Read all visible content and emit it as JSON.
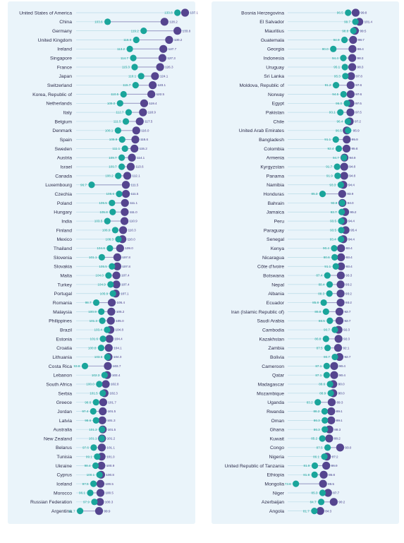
{
  "colors": {
    "teal": "#1aa59b",
    "purple": "#55458f",
    "track": "#b9dbe8",
    "panel": "#eaf4fa"
  },
  "chart_data": [
    {
      "type": "scatter",
      "x_domain": [
        90,
        140
      ],
      "series": [],
      "rows": [
        {
          "country": "United States of America",
          "teal": 133.8,
          "purple": 137.1
        },
        {
          "country": "China",
          "teal": 103.6,
          "purple": 128.2
        },
        {
          "country": "Germany",
          "teal": 119.2,
          "purple": 133.8
        },
        {
          "country": "United Kingdom",
          "teal": 116.0,
          "purple": 130.2
        },
        {
          "country": "Ireland",
          "teal": 113.2,
          "purple": 127.7
        },
        {
          "country": "Singapore",
          "teal": 114.7,
          "purple": 127.3
        },
        {
          "country": "France",
          "teal": 115.3,
          "purple": 126.3
        },
        {
          "country": "Japan",
          "teal": 118.1,
          "purple": 124.1
        },
        {
          "country": "Switzerland",
          "teal": 115.7,
          "purple": 123.1
        },
        {
          "country": "Korea, Republic of",
          "teal": 110.5,
          "purple": 122.5
        },
        {
          "country": "Netherlands",
          "teal": 109.0,
          "purple": 119.4
        },
        {
          "country": "Italy",
          "teal": 112.7,
          "purple": 118.9
        },
        {
          "country": "Belgium",
          "teal": 111.5,
          "purple": 117.5
        },
        {
          "country": "Denmark",
          "teal": 108.1,
          "purple": 116.0
        },
        {
          "country": "Spain",
          "teal": 109.9,
          "purple": 115.6
        },
        {
          "country": "Sweden",
          "teal": 111.1,
          "purple": 115.2
        },
        {
          "country": "Austria",
          "teal": 109.7,
          "purple": 114.1
        },
        {
          "country": "Israel",
          "teal": 109.7,
          "purple": 113.6
        },
        {
          "country": "Canada",
          "teal": 108.2,
          "purple": 112.1
        },
        {
          "country": "Luxembourg",
          "teal": 96.7,
          "purple": 111.5
        },
        {
          "country": "Czechia",
          "teal": 108.6,
          "purple": 111.5
        },
        {
          "country": "Poland",
          "teal": 105.5,
          "purple": 111.1
        },
        {
          "country": "Hungary",
          "teal": 105.8,
          "purple": 111.0
        },
        {
          "country": "India",
          "teal": 103.5,
          "purple": 110.9
        },
        {
          "country": "Finland",
          "teal": 106.9,
          "purple": 110.3
        },
        {
          "country": "Mexico",
          "teal": 108.3,
          "purple": 110.0
        },
        {
          "country": "Thailand",
          "teal": 104.6,
          "purple": 109.0
        },
        {
          "country": "Slovenia",
          "teal": 101.1,
          "purple": 107.8
        },
        {
          "country": "Slovakia",
          "teal": 105.5,
          "purple": 107.8
        },
        {
          "country": "Malta",
          "teal": 104.0,
          "purple": 107.4
        },
        {
          "country": "Turkey",
          "teal": 104.9,
          "purple": 107.4
        },
        {
          "country": "Portugal",
          "teal": 105.9,
          "purple": 107.1
        },
        {
          "country": "Romania",
          "teal": 98.7,
          "purple": 105.4
        },
        {
          "country": "Malaysia",
          "teal": 100.9,
          "purple": 105.2
        },
        {
          "country": "Philippines",
          "teal": 101.3,
          "purple": 105.0
        },
        {
          "country": "Brazil",
          "teal": 103.4,
          "purple": 104.8
        },
        {
          "country": "Estonia",
          "teal": 101.6,
          "purple": 104.4
        },
        {
          "country": "Croatia",
          "teal": 100.8,
          "purple": 104.1
        },
        {
          "country": "Lithuania",
          "teal": 103.5,
          "purple": 104.0
        },
        {
          "country": "Costa Rica",
          "teal": 93.8,
          "purple": 103.7
        },
        {
          "country": "Lebanon",
          "teal": 102.3,
          "purple": 103.4
        },
        {
          "country": "South Africa",
          "teal": 100.0,
          "purple": 102.8
        },
        {
          "country": "Serbia",
          "teal": 101.5,
          "purple": 102.3
        },
        {
          "country": "Greece",
          "teal": 98.6,
          "purple": 101.7
        },
        {
          "country": "Jordan",
          "teal": 97.4,
          "purple": 101.5
        },
        {
          "country": "Latvia",
          "teal": 98.6,
          "purple": 101.3
        },
        {
          "country": "Australia",
          "teal": 101.2,
          "purple": 101.5
        },
        {
          "country": "New Zealand",
          "teal": 101.1,
          "purple": 101.2
        },
        {
          "country": "Belarus",
          "teal": 97.6,
          "purple": 101.1
        },
        {
          "country": "Tunisia",
          "teal": 99.1,
          "purple": 101.0
        },
        {
          "country": "Ukraine",
          "teal": 98.4,
          "purple": 100.9
        },
        {
          "country": "Cyprus",
          "teal": 100.1,
          "purple": 100.8
        },
        {
          "country": "Iceland",
          "teal": 97.5,
          "purple": 100.5
        },
        {
          "country": "Morocco",
          "teal": 96.1,
          "purple": 100.5
        },
        {
          "country": "Russian Federation",
          "teal": 97.9,
          "purple": 100.3
        },
        {
          "country": "Argentina",
          "teal": 91.7,
          "purple": 99.9
        }
      ]
    },
    {
      "type": "scatter",
      "x_domain": [
        70,
        104
      ],
      "series": [],
      "rows": [
        {
          "country": "Bosnia Herzegovina",
          "teal": 96.5,
          "purple": 99.8
        },
        {
          "country": "El Salvador",
          "teal": 99.7,
          "purple": 101.4
        },
        {
          "country": "Mauritius",
          "teal": 98.8,
          "purple": 99.5
        },
        {
          "country": "Guatemala",
          "teal": 94.9,
          "purple": 98.7
        },
        {
          "country": "Georgia",
          "teal": 90.0,
          "purple": 98.4
        },
        {
          "country": "Indonesia",
          "teal": 94.4,
          "purple": 98.3
        },
        {
          "country": "Uruguay",
          "teal": 95.1,
          "purple": 98.3
        },
        {
          "country": "Sri Lanka",
          "teal": 95.3,
          "purple": 97.8
        },
        {
          "country": "Moldova, Republic of",
          "teal": 91.2,
          "purple": 97.6
        },
        {
          "country": "Norway",
          "teal": 94.5,
          "purple": 97.6
        },
        {
          "country": "Egypt",
          "teal": 96.0,
          "purple": 97.5
        },
        {
          "country": "Pakistan",
          "teal": 93.1,
          "purple": 97.5
        },
        {
          "country": "Chile",
          "teal": 96.4,
          "purple": 97.2
        },
        {
          "country": "United Arab Emirates",
          "teal": 96.5,
          "purple": 95.9
        },
        {
          "country": "Bangladesh",
          "teal": 91.1,
          "purple": 95.9
        },
        {
          "country": "Colombia",
          "teal": 92.4,
          "purple": 95.8
        },
        {
          "country": "Armenia",
          "teal": 94.7,
          "purple": 94.9
        },
        {
          "country": "Kyrgyzstan",
          "teal": 91.7,
          "purple": 94.8
        },
        {
          "country": "Panama",
          "teal": 91.9,
          "purple": 94.8
        },
        {
          "country": "Namibia",
          "teal": 93.3,
          "purple": 94.4
        },
        {
          "country": "Honduras",
          "teal": 85.3,
          "purple": 93.9
        },
        {
          "country": "Bahrain",
          "teal": 93.9,
          "purple": 94.0
        },
        {
          "country": "Jamaica",
          "teal": 93.7,
          "purple": 95.2
        },
        {
          "country": "Peru",
          "teal": 93.5,
          "purple": 94.4
        },
        {
          "country": "Paraguay",
          "teal": 93.5,
          "purple": 95.4
        },
        {
          "country": "Senegal",
          "teal": 93.4,
          "purple": 94.4
        },
        {
          "country": "Kenya",
          "teal": 90.4,
          "purple": 93.4
        },
        {
          "country": "Nicaragua",
          "teal": 90.6,
          "purple": 93.4
        },
        {
          "country": "Côte d'Ivoire",
          "teal": 91.1,
          "purple": 93.4
        },
        {
          "country": "Botswana",
          "teal": 87.4,
          "purple": 93.3
        },
        {
          "country": "Nepal",
          "teal": 88.4,
          "purple": 93.2
        },
        {
          "country": "Albania",
          "teal": 88.3,
          "purple": 93.2
        },
        {
          "country": "Ecuador",
          "teal": 85.8,
          "purple": 93.2
        },
        {
          "country": "Iran (Islamic Republic of)",
          "teal": 86.8,
          "purple": 92.7
        },
        {
          "country": "Saudi Arabia",
          "teal": 88.5,
          "purple": 92.7
        },
        {
          "country": "Cambodia",
          "teal": 90.7,
          "purple": 92.3
        },
        {
          "country": "Kazakhstan",
          "teal": 86.8,
          "purple": 92.3
        },
        {
          "country": "Zambia",
          "teal": 87.5,
          "purple": 92.1
        },
        {
          "country": "Bolivia",
          "teal": 90.7,
          "purple": 92.7
        },
        {
          "country": "Cameroon",
          "teal": 87.1,
          "purple": 90.4
        },
        {
          "country": "Qatar",
          "teal": 87.1,
          "purple": 90.4
        },
        {
          "country": "Madagascar",
          "teal": 88.6,
          "purple": 90.0
        },
        {
          "country": "Mozambique",
          "teal": 88.9,
          "purple": 90.0
        },
        {
          "country": "Uganda",
          "teal": 83.2,
          "purple": 89.3
        },
        {
          "country": "Rwanda",
          "teal": 86.2,
          "purple": 89.1
        },
        {
          "country": "Oman",
          "teal": 86.3,
          "purple": 89.1
        },
        {
          "country": "Ghana",
          "teal": 86.3,
          "purple": 88.3
        },
        {
          "country": "Kuwait",
          "teal": 85.2,
          "purple": 88.2
        },
        {
          "country": "Congo",
          "teal": 87.5,
          "purple": 93.0
        },
        {
          "country": "Nigeria",
          "teal": 86.1,
          "purple": 87.2
        },
        {
          "country": "United Republic of Tanzania",
          "teal": 81.9,
          "purple": 86.9
        },
        {
          "country": "Ethiopia",
          "teal": 81.8,
          "purple": 85.8
        },
        {
          "country": "Mongolia",
          "teal": 73.6,
          "purple": 85.5
        },
        {
          "country": "Niger",
          "teal": 85.3,
          "purple": 87.7
        },
        {
          "country": "Azerbaijan",
          "teal": 84.7,
          "purple": 90.2
        },
        {
          "country": "Angola",
          "teal": 81.7,
          "purple": 84.3
        }
      ]
    }
  ]
}
